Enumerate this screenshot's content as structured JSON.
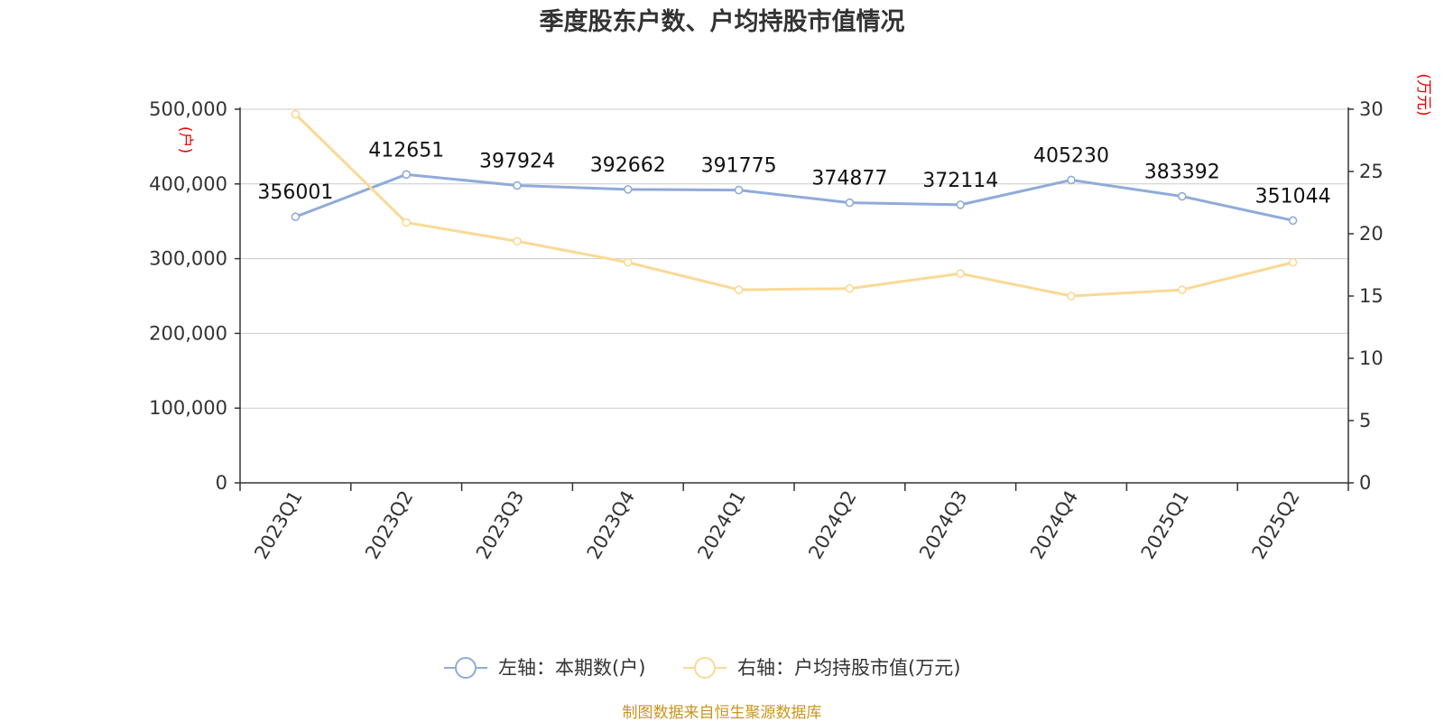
{
  "chart_data": {
    "type": "line",
    "title": "季度股东户数、户均持股市值情况",
    "categories": [
      "2023Q1",
      "2023Q2",
      "2023Q3",
      "2023Q4",
      "2024Q1",
      "2024Q2",
      "2024Q3",
      "2024Q4",
      "2025Q1",
      "2025Q2"
    ],
    "left_axis": {
      "unit": "(户)",
      "range": [
        0,
        500000
      ],
      "ticks": [
        "0",
        "100,000",
        "200,000",
        "300,000",
        "400,000",
        "500,000"
      ]
    },
    "right_axis": {
      "unit": "(万元)",
      "range": [
        0,
        30
      ],
      "ticks": [
        "0",
        "5",
        "10",
        "15",
        "20",
        "25",
        "30"
      ]
    },
    "series": [
      {
        "name": "左轴：本期数(户)",
        "axis": "left",
        "color": "#8fabd9",
        "values": [
          356001,
          412651,
          397924,
          392662,
          391775,
          374877,
          372114,
          405230,
          383392,
          351044
        ],
        "labels": [
          "356001",
          "412651",
          "397924",
          "392662",
          "391775",
          "374877",
          "372114",
          "405230",
          "383392",
          "351044"
        ]
      },
      {
        "name": "右轴：户均持股市值(万元)",
        "axis": "right",
        "color": "#fad996",
        "values": [
          29.6,
          20.9,
          19.4,
          17.7,
          15.5,
          15.6,
          16.8,
          15.0,
          15.5,
          17.7
        ]
      }
    ],
    "grid": true,
    "legend_position": "bottom-center"
  },
  "source": "制图数据来自恒生聚源数据库"
}
